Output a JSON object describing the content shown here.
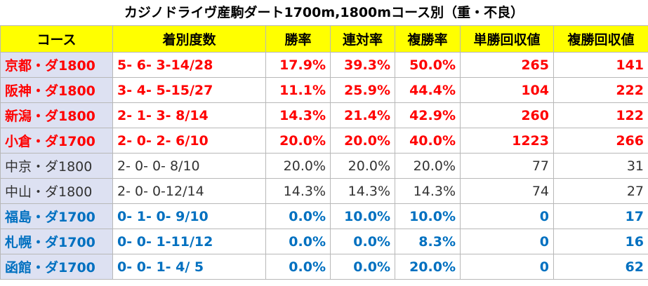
{
  "title": "カジノドライヴ産駒ダート1700m,1800mコース別（重・不良）",
  "table": {
    "header": [
      "コース",
      "着別度数",
      "勝率",
      "連対率",
      "複勝率",
      "単勝回収値",
      "複勝回収値"
    ],
    "rows": [
      [
        "京都・ダ1800",
        "5- 6- 3-14/28",
        "17.9%",
        "39.3%",
        "50.0%",
        "265",
        "141"
      ],
      [
        "阪神・ダ1800",
        "3- 4- 5-15/27",
        "11.1%",
        "25.9%",
        "44.4%",
        "104",
        "222"
      ],
      [
        "新潟・ダ1800",
        "2- 1- 3- 8/14",
        "14.3%",
        "21.4%",
        "42.9%",
        "260",
        "122"
      ],
      [
        "小倉・ダ1700",
        "2- 0- 2- 6/10",
        "20.0%",
        "20.0%",
        "40.0%",
        "1223",
        "266"
      ],
      [
        "中京・ダ1800",
        "2- 0- 0- 8/10",
        "20.0%",
        "20.0%",
        "20.0%",
        "77",
        "31"
      ],
      [
        "中山・ダ1800",
        "2- 0- 0-12/14",
        "14.3%",
        "14.3%",
        "14.3%",
        "74",
        "27"
      ],
      [
        "福島・ダ1700",
        "0- 1- 0- 9/10",
        "0.0%",
        "10.0%",
        "10.0%",
        "0",
        "17"
      ],
      [
        "札幌・ダ1700",
        "0- 0- 1-11/12",
        "0.0%",
        "0.0%",
        "8.3%",
        "0",
        "16"
      ],
      [
        "函館・ダ1700",
        "0- 0- 1- 4/ 5",
        "0.0%",
        "0.0%",
        "20.0%",
        "0",
        "62"
      ]
    ]
  }
}
